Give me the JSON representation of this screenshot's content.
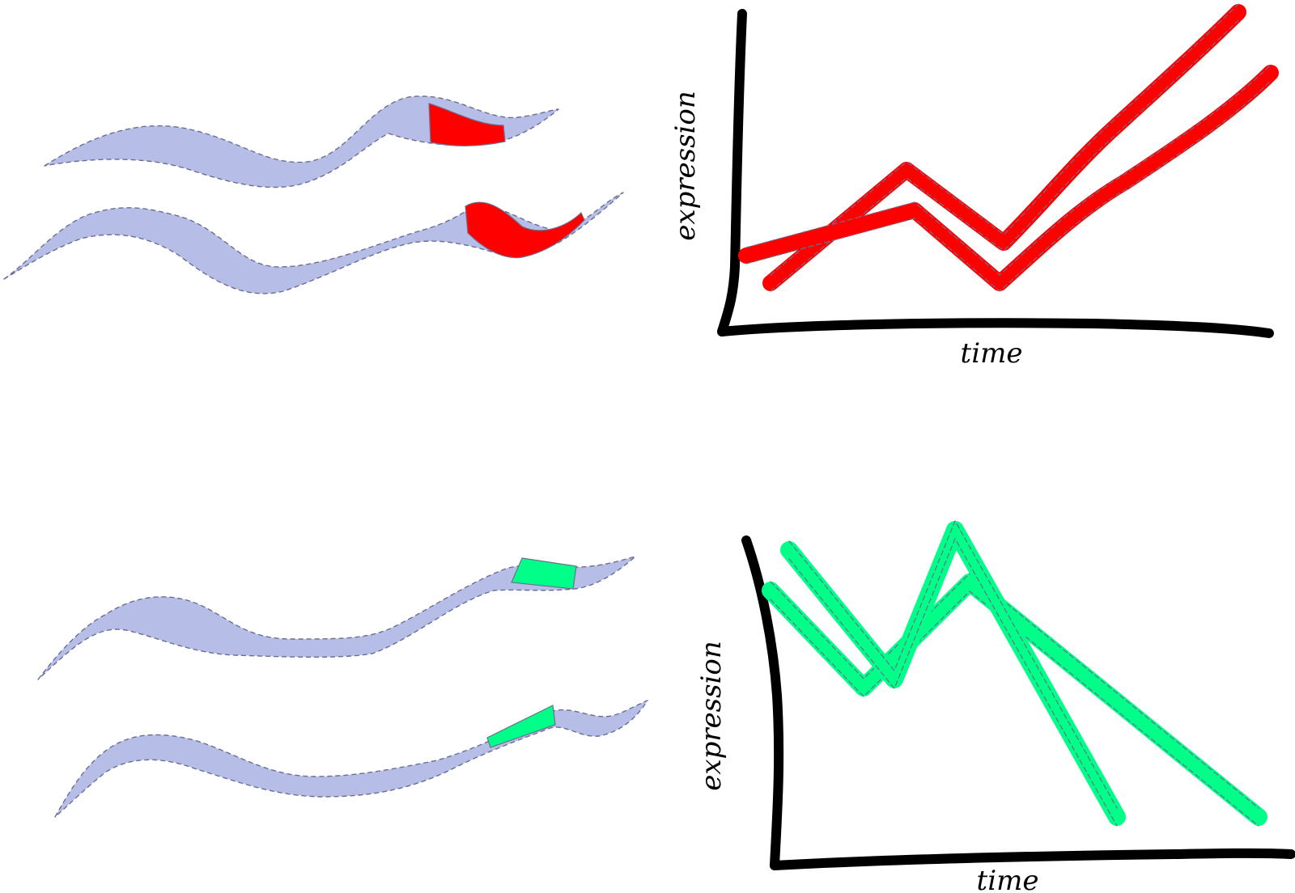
{
  "colors": {
    "worm_body": "#b6bde6",
    "worm_outline": "#6b6f8f",
    "marker_red": "#ff0000",
    "marker_green": "#00ff88",
    "axis": "#000000"
  },
  "panels": [
    {
      "marker_color": "#ff0000",
      "xlabel": "time",
      "ylabel": "expression"
    },
    {
      "marker_color": "#00ff88",
      "xlabel": "time",
      "ylabel": "expression"
    }
  ]
}
